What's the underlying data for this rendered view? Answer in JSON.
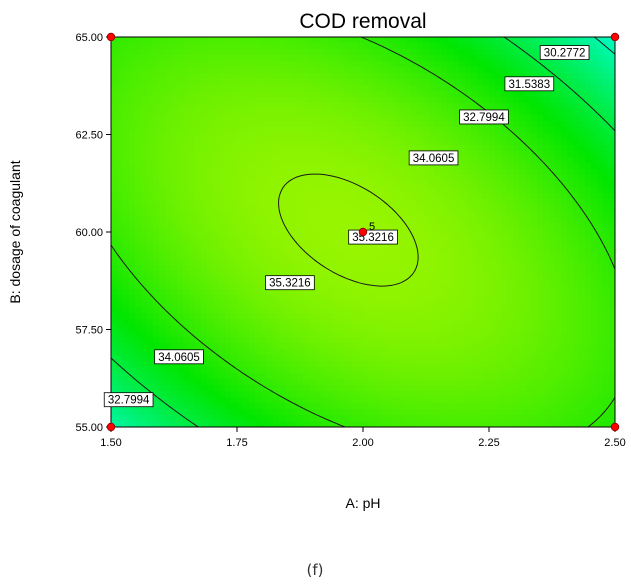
{
  "chart_data": {
    "type": "contour",
    "title": "COD removal",
    "xlabel": "A: pH",
    "ylabel": "B: dosage of coagulant",
    "xlim": [
      1.5,
      2.5
    ],
    "ylim": [
      55.0,
      65.0
    ],
    "x_ticks": [
      "1.50",
      "1.75",
      "2.00",
      "2.25",
      "2.50"
    ],
    "y_ticks": [
      "55.00",
      "57.50",
      "60.00",
      "62.50",
      "65.00"
    ],
    "contour_levels": [
      {
        "label": "30.2772",
        "value": 30.2772,
        "label_at": [
          2.4,
          64.6
        ]
      },
      {
        "label": "31.5383",
        "value": 31.5383,
        "label_at": [
          2.33,
          63.8
        ]
      },
      {
        "label": "32.7994",
        "value": 32.7994,
        "label_at": [
          2.24,
          62.95
        ]
      },
      {
        "label": "34.0605",
        "value": 34.0605,
        "label_at": [
          2.14,
          61.9
        ]
      },
      {
        "label": "35.3216",
        "value": 35.3216,
        "label_at": [
          1.855,
          58.7
        ]
      },
      {
        "label": "35.3216",
        "value": 35.3216,
        "label_at": [
          2.02,
          59.87
        ]
      },
      {
        "label": "34.0605",
        "value": 34.0605,
        "label_at": [
          1.635,
          56.8
        ]
      },
      {
        "label": "32.7994",
        "value": 32.7994,
        "label_at": [
          1.535,
          55.7
        ]
      }
    ],
    "design_points": [
      {
        "x": 1.5,
        "y": 65.0
      },
      {
        "x": 2.5,
        "y": 65.0
      },
      {
        "x": 1.5,
        "y": 55.0
      },
      {
        "x": 2.5,
        "y": 55.0
      },
      {
        "x": 2.0,
        "y": 60.0,
        "label": "5"
      }
    ],
    "colormap": [
      "#0000ff",
      "#00ffff",
      "#00ff00",
      "#ffff00",
      "#ff0000"
    ]
  },
  "caption": "(f)"
}
